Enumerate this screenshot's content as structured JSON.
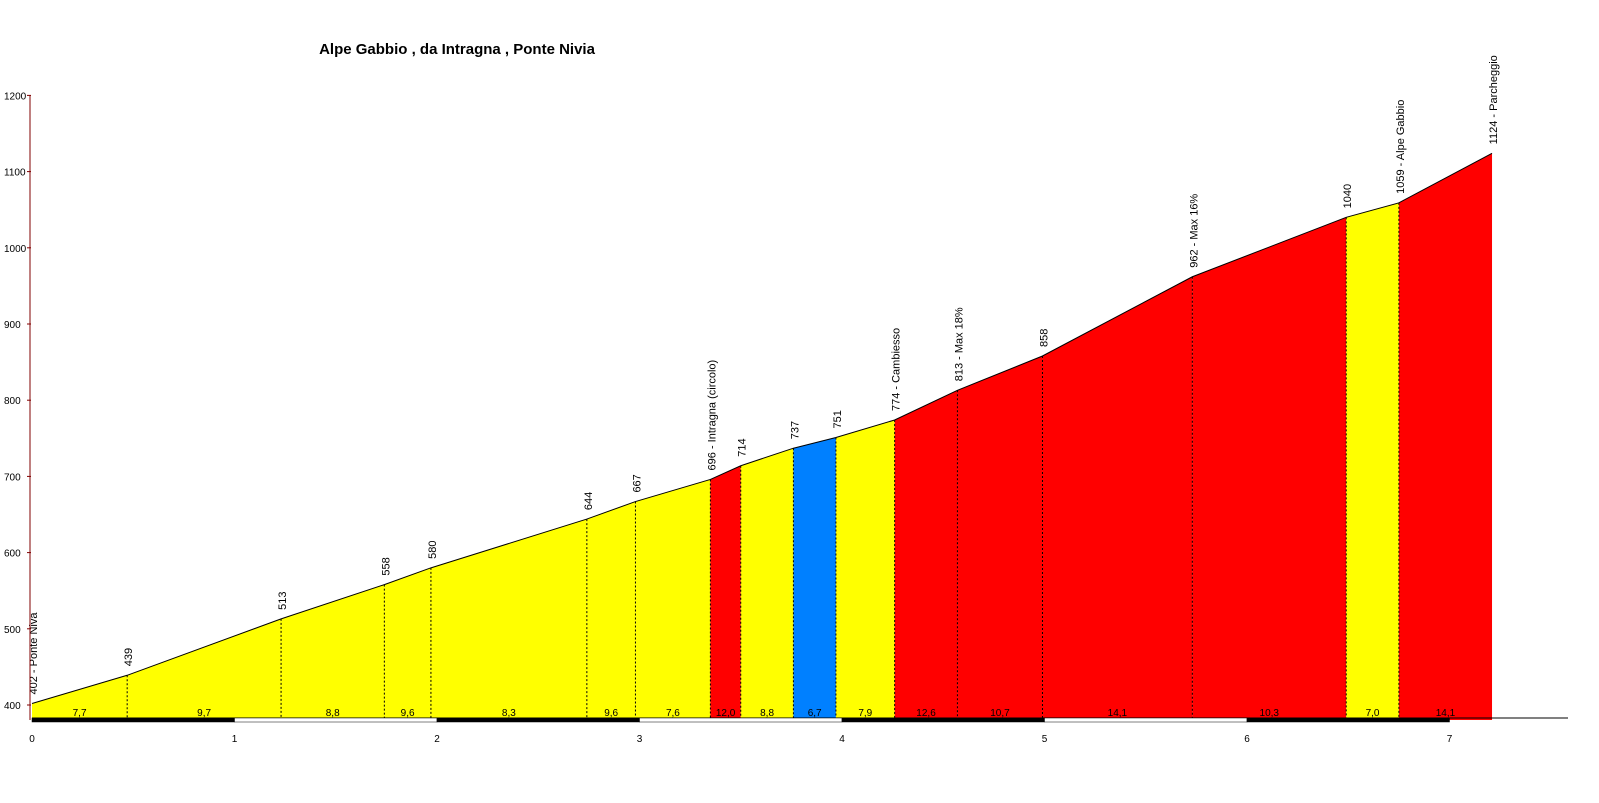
{
  "chart_data": {
    "type": "area",
    "title": "Alpe Gabbio , da Intragna , Ponte Nivia",
    "ylim": [
      380,
      1200
    ],
    "xlim": [
      0,
      7.7
    ],
    "yticks": [
      400,
      500,
      600,
      700,
      800,
      900,
      1000,
      1100,
      1200
    ],
    "xticks": [
      0,
      1,
      2,
      3,
      4,
      5,
      6,
      7
    ],
    "points": [
      {
        "x": 0.0,
        "y": 402,
        "label": "402 - Ponte Niva"
      },
      {
        "x": 0.47,
        "y": 439,
        "label": "439"
      },
      {
        "x": 1.23,
        "y": 513,
        "label": "513"
      },
      {
        "x": 1.74,
        "y": 558,
        "label": "558"
      },
      {
        "x": 1.97,
        "y": 580,
        "label": "580"
      },
      {
        "x": 2.74,
        "y": 644,
        "label": "644"
      },
      {
        "x": 2.98,
        "y": 667,
        "label": "667"
      },
      {
        "x": 3.35,
        "y": 696,
        "label": "696 - Intragna (circolo)"
      },
      {
        "x": 3.5,
        "y": 714,
        "label": "714"
      },
      {
        "x": 3.76,
        "y": 737,
        "label": "737"
      },
      {
        "x": 3.97,
        "y": 751,
        "label": "751"
      },
      {
        "x": 4.26,
        "y": 774,
        "label": "774 - Cambiesso"
      },
      {
        "x": 4.57,
        "y": 813,
        "label": "813 - Max 18%"
      },
      {
        "x": 4.99,
        "y": 858,
        "label": "858"
      },
      {
        "x": 5.73,
        "y": 962,
        "label": "962 - Max 16%"
      },
      {
        "x": 6.49,
        "y": 1040,
        "label": "1040"
      },
      {
        "x": 6.75,
        "y": 1059,
        "label": "1059 - Alpe Gabbio"
      },
      {
        "x": 7.21,
        "y": 1124,
        "label": "1124 - Parcheggio"
      }
    ],
    "segments": [
      {
        "gradient": "7,7",
        "color": "#FFFF00"
      },
      {
        "gradient": "9,7",
        "color": "#FFFF00"
      },
      {
        "gradient": "8,8",
        "color": "#FFFF00"
      },
      {
        "gradient": "9,6",
        "color": "#FFFF00"
      },
      {
        "gradient": "8,3",
        "color": "#FFFF00"
      },
      {
        "gradient": "9,6",
        "color": "#FFFF00"
      },
      {
        "gradient": "7,6",
        "color": "#FFFF00"
      },
      {
        "gradient": "12,0",
        "color": "#FF0000"
      },
      {
        "gradient": "8,8",
        "color": "#FFFF00"
      },
      {
        "gradient": "6,7",
        "color": "#0080FF"
      },
      {
        "gradient": "7,9",
        "color": "#FFFF00"
      },
      {
        "gradient": "12,6",
        "color": "#FF0000"
      },
      {
        "gradient": "10,7",
        "color": "#FF0000"
      },
      {
        "gradient": "14,1",
        "color": "#FF0000"
      },
      {
        "gradient": "10,3",
        "color": "#FF0000"
      },
      {
        "gradient": "7,0",
        "color": "#FFFF00"
      },
      {
        "gradient": "14,1",
        "color": "#FF0000"
      }
    ],
    "colors": {
      "axis_text": "#000000",
      "y_axis": "#800000",
      "outline": "#000000"
    }
  }
}
